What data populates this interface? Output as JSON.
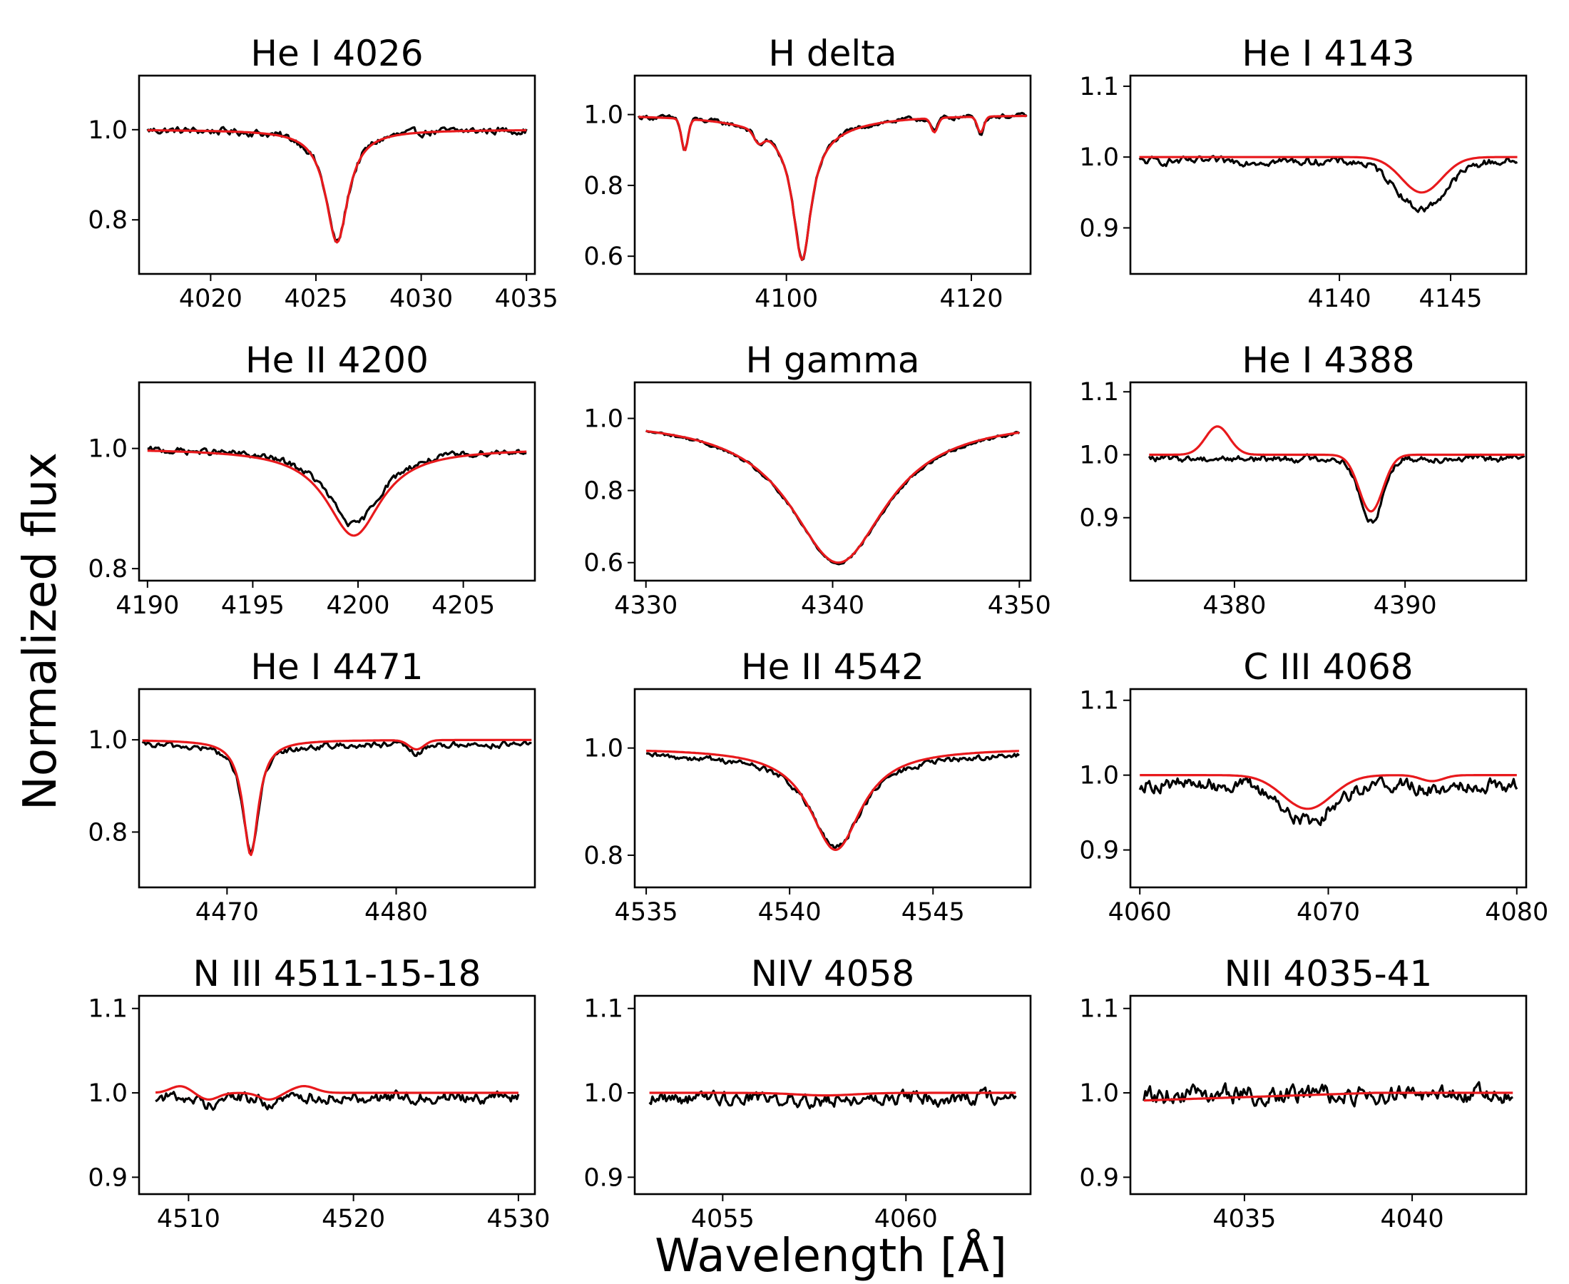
{
  "figure": {
    "xlabel": "Wavelength [Å]",
    "ylabel": "Normalized flux",
    "colors": {
      "observed": "#000000",
      "model": "#e8191c"
    }
  },
  "chart_data": [
    {
      "type": "line",
      "title": "He I 4026",
      "xlim": [
        4016.6,
        4035.4
      ],
      "ylim": [
        0.68,
        1.12
      ],
      "xticks": [
        4020,
        4025,
        4030,
        4035
      ],
      "yticks": [
        0.8,
        1.0
      ],
      "ytick_labels": [
        "0.8",
        "1.0"
      ],
      "lines": [
        {
          "center": 4026.0,
          "depth": 0.25,
          "width": 0.65,
          "kind": "lorentz"
        }
      ],
      "x_range": [
        4017,
        4035
      ],
      "obs_offset": 0.0,
      "noise": 0.006,
      "obs_depth_scale": 1.0,
      "obs_width_scale": 1.0
    },
    {
      "type": "line",
      "title": "H delta",
      "xlim": [
        4083.6,
        4126.4
      ],
      "ylim": [
        0.55,
        1.11
      ],
      "xticks": [
        4100,
        4120
      ],
      "yticks": [
        0.6,
        0.8,
        1.0
      ],
      "ytick_labels": [
        "0.6",
        "0.8",
        "1.0"
      ],
      "lines": [
        {
          "center": 4101.7,
          "depth": 0.36,
          "width": 1.2,
          "kind": "lorentz"
        },
        {
          "center": 4101.7,
          "depth": 0.05,
          "width": 6.0,
          "kind": "lorentz"
        },
        {
          "center": 4089.0,
          "depth": 0.09,
          "width": 0.35,
          "kind": "gauss"
        },
        {
          "center": 4097.0,
          "depth": 0.03,
          "width": 0.5,
          "kind": "gauss"
        },
        {
          "center": 4116.0,
          "depth": 0.04,
          "width": 0.35,
          "kind": "gauss"
        },
        {
          "center": 4121.0,
          "depth": 0.045,
          "width": 0.35,
          "kind": "gauss"
        }
      ],
      "x_range": [
        4084,
        4126
      ],
      "obs_offset": 0.0,
      "noise": 0.005,
      "obs_depth_scale": 1.0,
      "obs_width_scale": 1.0
    },
    {
      "type": "line",
      "title": "He I 4143",
      "xlim": [
        4130.6,
        4148.4
      ],
      "ylim": [
        0.835,
        1.115
      ],
      "xticks": [
        4140,
        4145
      ],
      "yticks": [
        0.9,
        1.0,
        1.1
      ],
      "ytick_labels": [
        "0.9",
        "1.0",
        "1.1"
      ],
      "lines": [
        {
          "center": 4143.7,
          "depth": 0.05,
          "width": 0.9,
          "kind": "gauss"
        }
      ],
      "x_range": [
        4131,
        4148
      ],
      "obs_offset": -0.006,
      "noise": 0.004,
      "obs_depth_scale": 1.35,
      "obs_width_scale": 1.2
    },
    {
      "type": "line",
      "title": "He II 4200",
      "xlim": [
        4189.6,
        4208.4
      ],
      "ylim": [
        0.78,
        1.11
      ],
      "xticks": [
        4190,
        4195,
        4200,
        4205
      ],
      "yticks": [
        0.8,
        1.0
      ],
      "ytick_labels": [
        "0.8",
        "1.0"
      ],
      "lines": [
        {
          "center": 4199.8,
          "depth": 0.145,
          "width": 1.6,
          "kind": "lorentz"
        }
      ],
      "x_range": [
        4190,
        4208
      ],
      "obs_offset": 0.0,
      "noise": 0.004,
      "obs_depth_scale": 0.88,
      "obs_width_scale": 0.95
    },
    {
      "type": "line",
      "title": "H gamma",
      "xlim": [
        4329.4,
        4350.6
      ],
      "ylim": [
        0.55,
        1.1
      ],
      "xticks": [
        4330,
        4340,
        4350
      ],
      "yticks": [
        0.6,
        0.8,
        1.0
      ],
      "ytick_labels": [
        "0.6",
        "0.8",
        "1.0"
      ],
      "lines": [
        {
          "center": 4340.3,
          "depth": 0.4,
          "width": 3.2,
          "kind": "lorentz"
        }
      ],
      "x_range": [
        4330,
        4350
      ],
      "obs_offset": 0.0,
      "noise": 0.003,
      "obs_depth_scale": 1.0,
      "obs_width_scale": 1.02
    },
    {
      "type": "line",
      "title": "He I 4388",
      "xlim": [
        4373.9,
        4397.1
      ],
      "ylim": [
        0.8,
        1.115
      ],
      "xticks": [
        4380,
        4390
      ],
      "yticks": [
        0.9,
        1.0,
        1.1
      ],
      "ytick_labels": [
        "0.9",
        "1.0",
        "1.1"
      ],
      "lines": [
        {
          "center": 4388.0,
          "depth": 0.09,
          "width": 0.7,
          "kind": "gauss"
        },
        {
          "center": 4379.0,
          "depth": -0.045,
          "width": 0.7,
          "kind": "gauss",
          "model_only": true
        }
      ],
      "x_range": [
        4375,
        4397
      ],
      "obs_offset": -0.006,
      "noise": 0.004,
      "obs_depth_scale": 1.12,
      "obs_width_scale": 0.95
    },
    {
      "type": "line",
      "title": "He I 4471",
      "xlim": [
        4464.8,
        4488.2
      ],
      "ylim": [
        0.68,
        1.11
      ],
      "xticks": [
        4470,
        4480
      ],
      "yticks": [
        0.8,
        1.0
      ],
      "ytick_labels": [
        "0.8",
        "1.0"
      ],
      "lines": [
        {
          "center": 4471.4,
          "depth": 0.25,
          "width": 0.55,
          "kind": "lorentz"
        },
        {
          "center": 4481.2,
          "depth": 0.02,
          "width": 0.45,
          "kind": "gauss"
        }
      ],
      "x_range": [
        4465,
        4488
      ],
      "obs_offset": -0.01,
      "noise": 0.005,
      "obs_depth_scale": 0.96,
      "obs_width_scale": 1.0
    },
    {
      "type": "line",
      "title": "He II 4542",
      "xlim": [
        4534.6,
        4548.4
      ],
      "ylim": [
        0.74,
        1.11
      ],
      "xticks": [
        4535,
        4540,
        4545
      ],
      "yticks": [
        0.8,
        1.0
      ],
      "ytick_labels": [
        "0.8",
        "1.0"
      ],
      "lines": [
        {
          "center": 4541.6,
          "depth": 0.19,
          "width": 1.1,
          "kind": "lorentz"
        }
      ],
      "x_range": [
        4535,
        4548
      ],
      "obs_offset": -0.01,
      "noise": 0.004,
      "obs_depth_scale": 0.93,
      "obs_width_scale": 1.0
    },
    {
      "type": "line",
      "title": "C III 4068",
      "xlim": [
        4059.5,
        4080.5
      ],
      "ylim": [
        0.85,
        1.115
      ],
      "xticks": [
        4060,
        4070,
        4080
      ],
      "yticks": [
        0.9,
        1.0,
        1.1
      ],
      "ytick_labels": [
        "0.9",
        "1.0",
        "1.1"
      ],
      "lines": [
        {
          "center": 4068.9,
          "depth": 0.045,
          "width": 1.3,
          "kind": "gauss"
        },
        {
          "center": 4075.5,
          "depth": 0.008,
          "width": 0.6,
          "kind": "gauss"
        }
      ],
      "x_range": [
        4060,
        4080
      ],
      "obs_offset": -0.012,
      "noise": 0.007,
      "obs_depth_scale": 1.1,
      "obs_width_scale": 1.0
    },
    {
      "type": "line",
      "title": "N III 4511-15-18",
      "xlim": [
        4507.0,
        4531.0
      ],
      "ylim": [
        0.88,
        1.115
      ],
      "xticks": [
        4510,
        4520,
        4530
      ],
      "yticks": [
        0.9,
        1.0,
        1.1
      ],
      "ytick_labels": [
        "0.9",
        "1.0",
        "1.1"
      ],
      "lines": [
        {
          "center": 4509.5,
          "depth": -0.008,
          "width": 0.6,
          "kind": "gauss",
          "model_only": true
        },
        {
          "center": 4511.2,
          "depth": 0.008,
          "width": 0.6,
          "kind": "gauss"
        },
        {
          "center": 4514.9,
          "depth": 0.008,
          "width": 0.6,
          "kind": "gauss"
        },
        {
          "center": 4517.0,
          "depth": -0.008,
          "width": 0.7,
          "kind": "gauss",
          "model_only": true
        }
      ],
      "x_range": [
        4508,
        4530
      ],
      "obs_offset": -0.005,
      "noise": 0.005,
      "obs_depth_scale": 1.0,
      "obs_width_scale": 1.0
    },
    {
      "type": "line",
      "title": "NIV 4058",
      "xlim": [
        4052.6,
        4063.4
      ],
      "ylim": [
        0.88,
        1.115
      ],
      "xticks": [
        4055,
        4060
      ],
      "yticks": [
        0.9,
        1.0,
        1.1
      ],
      "ytick_labels": [
        "0.9",
        "1.0",
        "1.1"
      ],
      "lines": [
        {
          "center": 4057.8,
          "depth": 0.003,
          "width": 0.8,
          "kind": "gauss"
        }
      ],
      "x_range": [
        4053,
        4063
      ],
      "obs_offset": -0.006,
      "noise": 0.006,
      "obs_depth_scale": 1.0,
      "obs_width_scale": 1.0
    },
    {
      "type": "line",
      "title": "NII 4035-41",
      "xlim": [
        4031.6,
        4043.4
      ],
      "ylim": [
        0.88,
        1.115
      ],
      "xticks": [
        4035,
        4040
      ],
      "yticks": [
        0.9,
        1.0,
        1.1
      ],
      "ytick_labels": [
        "0.9",
        "1.0",
        "1.1"
      ],
      "lines": [],
      "x_range": [
        4032,
        4043
      ],
      "obs_offset": -0.003,
      "noise": 0.008,
      "obs_depth_scale": 1.0,
      "obs_width_scale": 1.0,
      "model_tilt": [
        0.991,
        1.0
      ]
    }
  ]
}
